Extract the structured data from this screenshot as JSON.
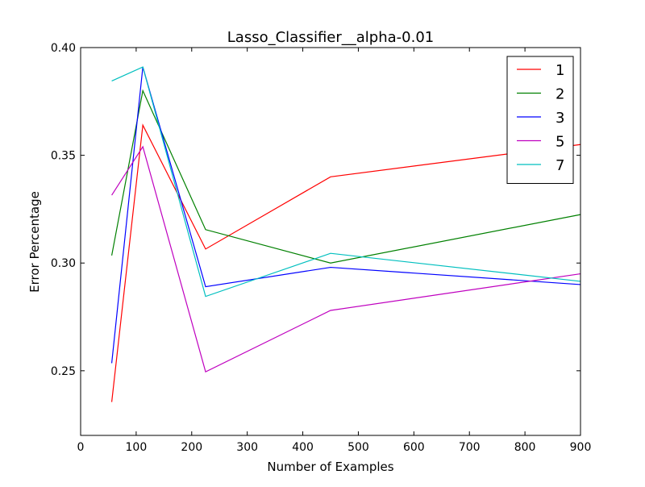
{
  "chart_data": {
    "type": "line",
    "title": "Lasso_Classifier__alpha-0.01",
    "xlabel": "Number of Examples",
    "ylabel": "Error Percentage",
    "xlim": [
      0,
      900
    ],
    "ylim": [
      0.22,
      0.4
    ],
    "xticks": [
      0,
      100,
      200,
      300,
      400,
      500,
      600,
      700,
      800,
      900
    ],
    "yticks": [
      0.25,
      0.3,
      0.35,
      0.4
    ],
    "xtick_labels": [
      "0",
      "100",
      "200",
      "300",
      "400",
      "500",
      "600",
      "700",
      "800",
      "900"
    ],
    "ytick_labels": [
      "0.25",
      "0.30",
      "0.35",
      "0.40"
    ],
    "x": [
      56,
      112,
      225,
      450,
      900
    ],
    "grid": false,
    "legend_position": "top-right",
    "series": [
      {
        "name": "1",
        "color": "#ff0000",
        "values": [
          0.2355,
          0.364,
          0.3065,
          0.34,
          0.355
        ]
      },
      {
        "name": "2",
        "color": "#008000",
        "values": [
          0.3035,
          0.38,
          0.3155,
          0.3,
          0.3225
        ]
      },
      {
        "name": "3",
        "color": "#0000ff",
        "values": [
          0.2535,
          0.391,
          0.289,
          0.298,
          0.29
        ]
      },
      {
        "name": "5",
        "color": "#bf00bf",
        "values": [
          0.3315,
          0.354,
          0.2495,
          0.278,
          0.295
        ]
      },
      {
        "name": "7",
        "color": "#00bfbf",
        "values": [
          0.3845,
          0.391,
          0.2845,
          0.3045,
          0.2915
        ]
      }
    ]
  }
}
